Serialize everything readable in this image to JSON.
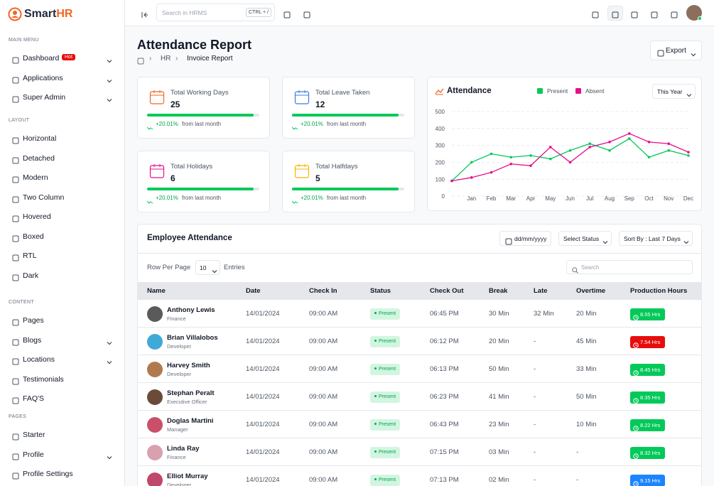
{
  "brand": {
    "name": "Smart",
    "accent": "HR"
  },
  "sidebar": [
    {
      "heading": "MAIN MENU",
      "items": [
        {
          "label": "Dashboard",
          "badge": "Hot",
          "caret": true
        },
        {
          "label": "Applications",
          "caret": true
        },
        {
          "label": "Super Admin",
          "caret": true
        }
      ]
    },
    {
      "heading": "LAYOUT",
      "items": [
        {
          "label": "Horizontal"
        },
        {
          "label": "Detached"
        },
        {
          "label": "Modern"
        },
        {
          "label": "Two Column"
        },
        {
          "label": "Hovered"
        },
        {
          "label": "Boxed"
        },
        {
          "label": "RTL"
        },
        {
          "label": "Dark"
        }
      ]
    },
    {
      "heading": "CONTENT",
      "items": [
        {
          "label": "Pages"
        },
        {
          "label": "Blogs",
          "caret": true
        },
        {
          "label": "Locations",
          "caret": true
        },
        {
          "label": "Testimonials"
        },
        {
          "label": "FAQ'S"
        }
      ]
    },
    {
      "heading": "PAGES",
      "items": [
        {
          "label": "Starter"
        },
        {
          "label": "Profile",
          "caret": true
        },
        {
          "label": "Profile Settings"
        }
      ]
    }
  ],
  "topbar": {
    "search_placeholder": "Search in HRMS",
    "shortcut": "CTRL + /"
  },
  "header": {
    "title": "Attendance Report",
    "breadcrumb": [
      "HR",
      "Invoice Report"
    ],
    "export": "Export"
  },
  "stats": [
    {
      "label": "Total Working Days",
      "value": 25,
      "change": "+20.01%",
      "note": "from last month",
      "color": "#f26522"
    },
    {
      "label": "Total Leave Taken",
      "value": 12,
      "change": "+20.01%",
      "note": "from last month",
      "color": "#3b7ddd"
    },
    {
      "label": "Total Holidays",
      "value": 6,
      "change": "+20.01%",
      "note": "from last month",
      "color": "#e70d8b"
    },
    {
      "label": "Total Halfdays",
      "value": 5,
      "change": "+20.01%",
      "note": "from last month",
      "color": "#f5b300"
    }
  ],
  "chart_data": {
    "type": "line",
    "title": "Attendance",
    "period": "This Year",
    "categories": [
      null,
      "Jan",
      "Feb",
      "Mar",
      "Apr",
      "May",
      "Jun",
      "Jul",
      "Aug",
      "Sep",
      "Oct",
      "Nov",
      "Dec"
    ],
    "series": [
      {
        "name": "Present",
        "color": "#03c95a",
        "values": [
          90,
          200,
          250,
          230,
          240,
          220,
          270,
          310,
          270,
          340,
          230,
          270,
          240
        ]
      },
      {
        "name": "Absent",
        "color": "#e70d8b",
        "values": [
          90,
          110,
          140,
          190,
          180,
          290,
          200,
          290,
          320,
          370,
          320,
          310,
          260
        ]
      }
    ],
    "ylim": [
      0,
      500
    ],
    "yticks": [
      0,
      100,
      200,
      300,
      400,
      500
    ],
    "grid": true
  },
  "table": {
    "title": "Employee Attendance",
    "filters": [
      "dd/mm/yyyy",
      "Select Status",
      "Sort By : Last 7 Days"
    ],
    "rows_per_page_label": "Row Per Page",
    "rows_per_page": 10,
    "entries_label": "Entries",
    "search_placeholder": "Search",
    "columns": [
      "Name",
      "Date",
      "Check In",
      "Status",
      "Check Out",
      "Break",
      "Late",
      "Overtime",
      "Production Hours"
    ],
    "rows": [
      {
        "name": "Anthony Lewis",
        "role": "Finance",
        "date": "14/01/2024",
        "check_in": "09:00 AM",
        "status": "Present",
        "check_out": "06:45 PM",
        "break": "30 Min",
        "late": "32 Min",
        "overtime": "20 Min",
        "production": "8.55 Hrs",
        "production_color": "#03c95a"
      },
      {
        "name": "Brian Villalobos",
        "role": "Developer",
        "date": "14/01/2024",
        "check_in": "09:00 AM",
        "status": "Present",
        "check_out": "06:12 PM",
        "break": "20 Min",
        "late": "-",
        "overtime": "45 Min",
        "production": "7.54 Hrs",
        "production_color": "#e70d0d"
      },
      {
        "name": "Harvey Smith",
        "role": "Developer",
        "date": "14/01/2024",
        "check_in": "09:00 AM",
        "status": "Present",
        "check_out": "06:13 PM",
        "break": "50 Min",
        "late": "-",
        "overtime": "33 Min",
        "production": "8.45 Hrs",
        "production_color": "#03c95a"
      },
      {
        "name": "Stephan Peralt",
        "role": "Executive Officer",
        "date": "14/01/2024",
        "check_in": "09:00 AM",
        "status": "Present",
        "check_out": "06:23 PM",
        "break": "41 Min",
        "late": "-",
        "overtime": "50 Min",
        "production": "8.35 Hrs",
        "production_color": "#03c95a"
      },
      {
        "name": "Doglas Martini",
        "role": "Manager",
        "date": "14/01/2024",
        "check_in": "09:00 AM",
        "status": "Present",
        "check_out": "06:43 PM",
        "break": "23 Min",
        "late": "-",
        "overtime": "10 Min",
        "production": "8.22 Hrs",
        "production_color": "#03c95a"
      },
      {
        "name": "Linda Ray",
        "role": "Finance",
        "date": "14/01/2024",
        "check_in": "09:00 AM",
        "status": "Present",
        "check_out": "07:15 PM",
        "break": "03 Min",
        "late": "-",
        "overtime": "-",
        "production": "8.32 Hrs",
        "production_color": "#03c95a"
      },
      {
        "name": "Elliot Murray",
        "role": "Developer",
        "date": "14/01/2024",
        "check_in": "09:00 AM",
        "status": "Present",
        "check_out": "07:13 PM",
        "break": "02 Min",
        "late": "-",
        "overtime": "-",
        "production": "9.15 Hrs",
        "production_color": "#1b84ff"
      }
    ]
  }
}
